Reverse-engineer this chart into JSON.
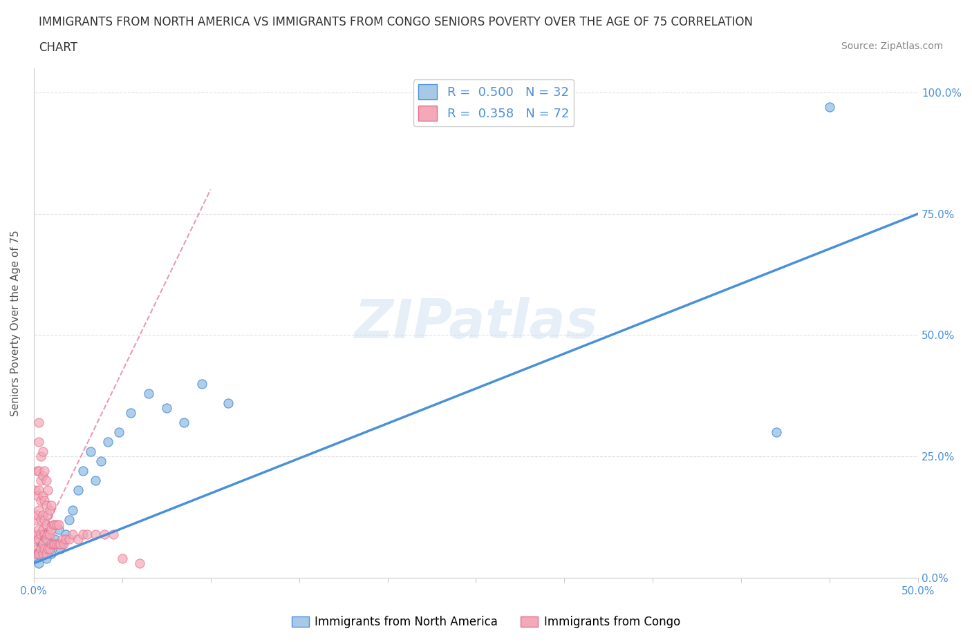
{
  "title_line1": "IMMIGRANTS FROM NORTH AMERICA VS IMMIGRANTS FROM CONGO SENIORS POVERTY OVER THE AGE OF 75 CORRELATION",
  "title_line2": "CHART",
  "source": "Source: ZipAtlas.com",
  "ylabel": "Seniors Poverty Over the Age of 75",
  "xlim": [
    0.0,
    0.5
  ],
  "ylim": [
    0.0,
    1.05
  ],
  "ytick_labels": [
    "0.0%",
    "25.0%",
    "50.0%",
    "75.0%",
    "100.0%"
  ],
  "ytick_positions": [
    0.0,
    0.25,
    0.5,
    0.75,
    1.0
  ],
  "blue_R": 0.5,
  "blue_N": 32,
  "pink_R": 0.358,
  "pink_N": 72,
  "blue_color": "#a8c8e8",
  "blue_line_color": "#4a90d9",
  "pink_color": "#f4a8b8",
  "pink_line_color": "#e07090",
  "blue_scatter_x": [
    0.001,
    0.002,
    0.003,
    0.004,
    0.005,
    0.006,
    0.007,
    0.008,
    0.009,
    0.01,
    0.012,
    0.014,
    0.015,
    0.016,
    0.018,
    0.02,
    0.022,
    0.025,
    0.028,
    0.032,
    0.035,
    0.038,
    0.042,
    0.048,
    0.055,
    0.065,
    0.075,
    0.085,
    0.095,
    0.11,
    0.42,
    0.45
  ],
  "blue_scatter_y": [
    0.05,
    0.04,
    0.03,
    0.07,
    0.06,
    0.05,
    0.04,
    0.08,
    0.06,
    0.05,
    0.08,
    0.1,
    0.06,
    0.07,
    0.09,
    0.12,
    0.14,
    0.18,
    0.22,
    0.26,
    0.2,
    0.24,
    0.28,
    0.3,
    0.34,
    0.38,
    0.35,
    0.32,
    0.4,
    0.36,
    0.3,
    0.97
  ],
  "pink_scatter_x": [
    0.001,
    0.001,
    0.001,
    0.001,
    0.002,
    0.002,
    0.002,
    0.002,
    0.002,
    0.003,
    0.003,
    0.003,
    0.003,
    0.003,
    0.003,
    0.003,
    0.003,
    0.004,
    0.004,
    0.004,
    0.004,
    0.004,
    0.004,
    0.005,
    0.005,
    0.005,
    0.005,
    0.005,
    0.005,
    0.005,
    0.006,
    0.006,
    0.006,
    0.006,
    0.006,
    0.007,
    0.007,
    0.007,
    0.007,
    0.007,
    0.008,
    0.008,
    0.008,
    0.008,
    0.009,
    0.009,
    0.009,
    0.01,
    0.01,
    0.01,
    0.011,
    0.011,
    0.012,
    0.012,
    0.013,
    0.013,
    0.014,
    0.014,
    0.015,
    0.016,
    0.017,
    0.018,
    0.02,
    0.022,
    0.025,
    0.028,
    0.03,
    0.035,
    0.04,
    0.045,
    0.05,
    0.06
  ],
  "pink_scatter_y": [
    0.05,
    0.08,
    0.12,
    0.18,
    0.06,
    0.09,
    0.13,
    0.17,
    0.22,
    0.05,
    0.08,
    0.1,
    0.14,
    0.18,
    0.22,
    0.28,
    0.32,
    0.06,
    0.09,
    0.12,
    0.16,
    0.2,
    0.25,
    0.05,
    0.07,
    0.1,
    0.13,
    0.17,
    0.21,
    0.26,
    0.06,
    0.09,
    0.12,
    0.16,
    0.22,
    0.05,
    0.08,
    0.11,
    0.15,
    0.2,
    0.06,
    0.09,
    0.13,
    0.18,
    0.06,
    0.09,
    0.14,
    0.07,
    0.1,
    0.15,
    0.07,
    0.11,
    0.07,
    0.11,
    0.07,
    0.11,
    0.07,
    0.11,
    0.07,
    0.08,
    0.07,
    0.08,
    0.08,
    0.09,
    0.08,
    0.09,
    0.09,
    0.09,
    0.09,
    0.09,
    0.04,
    0.03
  ],
  "blue_trend_x0": 0.0,
  "blue_trend_y0": 0.03,
  "blue_trend_x1": 0.5,
  "blue_trend_y1": 0.75,
  "pink_trend_x0": 0.0,
  "pink_trend_y0": 0.05,
  "pink_trend_x1": 0.1,
  "pink_trend_y1": 0.8,
  "watermark": "ZIPatlas",
  "grid_color": "#e0e0e0",
  "background_color": "#ffffff"
}
